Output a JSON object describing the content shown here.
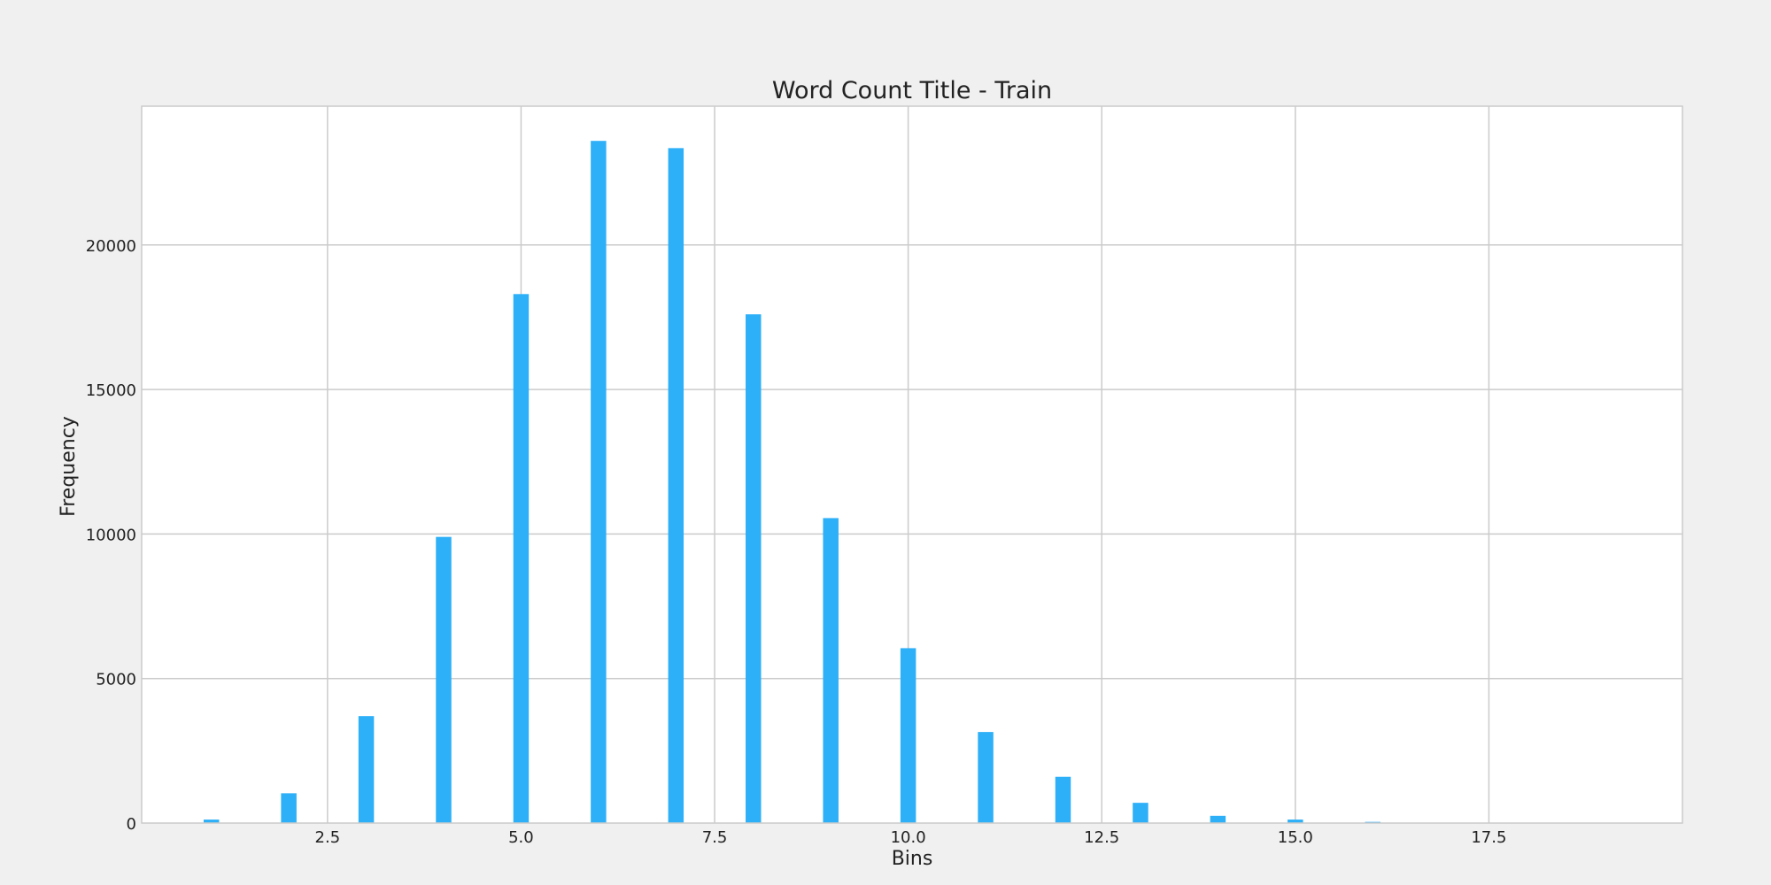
{
  "colors": {
    "figure_background": "#f0f0f0",
    "plot_background": "#ffffff",
    "bar": "#2eb0f8",
    "grid": "#cbcbcb",
    "text": "#222222"
  },
  "chart_data": {
    "type": "bar",
    "title": "Word Count Title - Train",
    "xlabel": "Bins",
    "ylabel": "Frequency",
    "xlim": [
      0.1,
      20.0
    ],
    "ylim": [
      0,
      24800
    ],
    "grid": true,
    "xticks": [
      2.5,
      5.0,
      7.5,
      10.0,
      12.5,
      15.0,
      17.5
    ],
    "xtick_labels": [
      "2.5",
      "5.0",
      "7.5",
      "10.0",
      "12.5",
      "15.0",
      "17.5"
    ],
    "yticks": [
      0,
      5000,
      10000,
      15000,
      20000
    ],
    "ytick_labels": [
      "0",
      "5000",
      "10000",
      "15000",
      "20000"
    ],
    "bar_width": 0.2,
    "x": [
      1,
      2,
      3,
      4,
      5,
      6,
      7,
      8,
      9,
      10,
      11,
      12,
      13,
      14,
      15,
      16
    ],
    "values": [
      120,
      1030,
      3700,
      9900,
      18300,
      23600,
      23350,
      17600,
      10550,
      6050,
      3150,
      1600,
      700,
      250,
      120,
      40
    ]
  }
}
